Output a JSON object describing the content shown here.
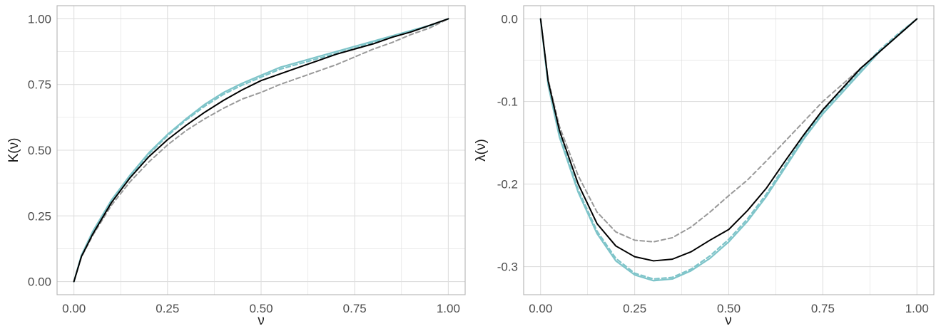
{
  "colors": {
    "teal": "#7ec4c9",
    "black": "#000000",
    "gray": "#999999",
    "grid": "#dedede",
    "panel_border": "#b3b3b3",
    "tick_text": "#4d4d4d",
    "axis_title": "#1a1a1a"
  },
  "chart_data": [
    {
      "type": "line",
      "title": "",
      "xlabel": "ν",
      "ylabel": "K(ν)",
      "xlim": [
        -0.045,
        1.045
      ],
      "ylim": [
        -0.05,
        1.05
      ],
      "x_ticks": [
        0,
        0.25,
        0.5,
        0.75,
        1
      ],
      "x_tick_labels": [
        "0.00",
        "0.25",
        "0.50",
        "0.75",
        "1.00"
      ],
      "y_ticks": [
        0,
        0.25,
        0.5,
        0.75,
        1
      ],
      "y_tick_labels": [
        "0.00",
        "0.25",
        "0.50",
        "0.75",
        "1.00"
      ],
      "grid": true,
      "legend": "none",
      "series": [
        {
          "color": "#7ec4c9",
          "style": "solid",
          "width": 2.2,
          "x": [
            0,
            0.02,
            0.05,
            0.1,
            0.15,
            0.2,
            0.25,
            0.3,
            0.35,
            0.4,
            0.45,
            0.5,
            0.55,
            0.6,
            0.65,
            0.7,
            0.75,
            0.8,
            0.85,
            0.9,
            0.95,
            1
          ],
          "y": [
            0,
            0.1,
            0.19,
            0.31,
            0.405,
            0.49,
            0.56,
            0.62,
            0.675,
            0.72,
            0.755,
            0.785,
            0.815,
            0.835,
            0.855,
            0.875,
            0.895,
            0.915,
            0.935,
            0.955,
            0.975,
            1
          ]
        },
        {
          "color": "#7ec4c9",
          "style": "dashed",
          "width": 2.2,
          "x": [
            0,
            0.02,
            0.05,
            0.1,
            0.15,
            0.2,
            0.25,
            0.3,
            0.35,
            0.4,
            0.45,
            0.5,
            0.55,
            0.6,
            0.65,
            0.7,
            0.75,
            0.8,
            0.85,
            0.9,
            0.95,
            1
          ],
          "y": [
            0,
            0.098,
            0.187,
            0.305,
            0.4,
            0.485,
            0.555,
            0.615,
            0.668,
            0.713,
            0.748,
            0.778,
            0.808,
            0.828,
            0.848,
            0.868,
            0.888,
            0.91,
            0.93,
            0.952,
            0.973,
            1
          ]
        },
        {
          "color": "#999999",
          "style": "dashed",
          "width": 2,
          "x": [
            0,
            0.02,
            0.05,
            0.1,
            0.15,
            0.2,
            0.25,
            0.3,
            0.35,
            0.4,
            0.45,
            0.5,
            0.55,
            0.6,
            0.65,
            0.7,
            0.75,
            0.8,
            0.85,
            0.9,
            0.95,
            1
          ],
          "y": [
            0,
            0.093,
            0.175,
            0.29,
            0.38,
            0.455,
            0.52,
            0.575,
            0.62,
            0.66,
            0.695,
            0.72,
            0.75,
            0.775,
            0.8,
            0.825,
            0.855,
            0.885,
            0.91,
            0.94,
            0.965,
            1
          ]
        },
        {
          "color": "#000000",
          "style": "solid",
          "width": 2,
          "x": [
            0,
            0.02,
            0.05,
            0.1,
            0.15,
            0.2,
            0.25,
            0.3,
            0.35,
            0.4,
            0.45,
            0.5,
            0.55,
            0.6,
            0.65,
            0.7,
            0.75,
            0.8,
            0.85,
            0.9,
            0.95,
            1
          ],
          "y": [
            0,
            0.095,
            0.18,
            0.3,
            0.395,
            0.475,
            0.54,
            0.595,
            0.645,
            0.69,
            0.73,
            0.765,
            0.79,
            0.815,
            0.84,
            0.865,
            0.885,
            0.905,
            0.93,
            0.95,
            0.975,
            1
          ]
        }
      ]
    },
    {
      "type": "line",
      "title": "",
      "xlabel": "ν",
      "ylabel": "λ(ν)",
      "xlim": [
        -0.045,
        1.045
      ],
      "ylim": [
        -0.334,
        0.016
      ],
      "x_ticks": [
        0,
        0.25,
        0.5,
        0.75,
        1
      ],
      "x_tick_labels": [
        "0.00",
        "0.25",
        "0.50",
        "0.75",
        "1.00"
      ],
      "y_ticks": [
        0,
        -0.1,
        -0.2,
        -0.3
      ],
      "y_tick_labels": [
        "0.0",
        "-0.1",
        "-0.2",
        "-0.3"
      ],
      "grid": true,
      "legend": "none",
      "series": [
        {
          "color": "#7ec4c9",
          "style": "solid",
          "width": 2.2,
          "x": [
            0,
            0.02,
            0.05,
            0.1,
            0.15,
            0.2,
            0.25,
            0.3,
            0.35,
            0.4,
            0.45,
            0.5,
            0.55,
            0.6,
            0.65,
            0.7,
            0.75,
            0.8,
            0.85,
            0.9,
            0.95,
            1
          ],
          "y": [
            0,
            -0.08,
            -0.143,
            -0.21,
            -0.26,
            -0.293,
            -0.31,
            -0.317,
            -0.315,
            -0.305,
            -0.29,
            -0.27,
            -0.245,
            -0.215,
            -0.18,
            -0.145,
            -0.115,
            -0.09,
            -0.065,
            -0.04,
            -0.02,
            0
          ]
        },
        {
          "color": "#7ec4c9",
          "style": "dashed",
          "width": 2.2,
          "x": [
            0,
            0.02,
            0.05,
            0.1,
            0.15,
            0.2,
            0.25,
            0.3,
            0.35,
            0.4,
            0.45,
            0.5,
            0.55,
            0.6,
            0.65,
            0.7,
            0.75,
            0.8,
            0.85,
            0.9,
            0.95,
            1
          ],
          "y": [
            0,
            -0.078,
            -0.14,
            -0.207,
            -0.257,
            -0.29,
            -0.308,
            -0.315,
            -0.313,
            -0.303,
            -0.287,
            -0.267,
            -0.242,
            -0.212,
            -0.177,
            -0.142,
            -0.112,
            -0.087,
            -0.062,
            -0.038,
            -0.018,
            0
          ]
        },
        {
          "color": "#999999",
          "style": "dashed",
          "width": 2,
          "x": [
            0,
            0.02,
            0.05,
            0.1,
            0.15,
            0.2,
            0.25,
            0.3,
            0.35,
            0.4,
            0.45,
            0.5,
            0.55,
            0.6,
            0.65,
            0.7,
            0.75,
            0.8,
            0.85,
            0.9,
            0.95,
            1
          ],
          "y": [
            0,
            -0.073,
            -0.13,
            -0.19,
            -0.234,
            -0.258,
            -0.268,
            -0.27,
            -0.265,
            -0.252,
            -0.234,
            -0.214,
            -0.195,
            -0.172,
            -0.148,
            -0.124,
            -0.1,
            -0.08,
            -0.06,
            -0.04,
            -0.02,
            0
          ]
        },
        {
          "color": "#000000",
          "style": "solid",
          "width": 2,
          "x": [
            0,
            0.02,
            0.05,
            0.1,
            0.15,
            0.2,
            0.25,
            0.3,
            0.35,
            0.4,
            0.45,
            0.5,
            0.55,
            0.6,
            0.65,
            0.7,
            0.75,
            0.8,
            0.85,
            0.9,
            0.95,
            1
          ],
          "y": [
            0,
            -0.075,
            -0.135,
            -0.2,
            -0.248,
            -0.275,
            -0.288,
            -0.293,
            -0.291,
            -0.282,
            -0.268,
            -0.255,
            -0.232,
            -0.205,
            -0.172,
            -0.14,
            -0.11,
            -0.085,
            -0.06,
            -0.04,
            -0.02,
            0
          ]
        }
      ]
    }
  ]
}
